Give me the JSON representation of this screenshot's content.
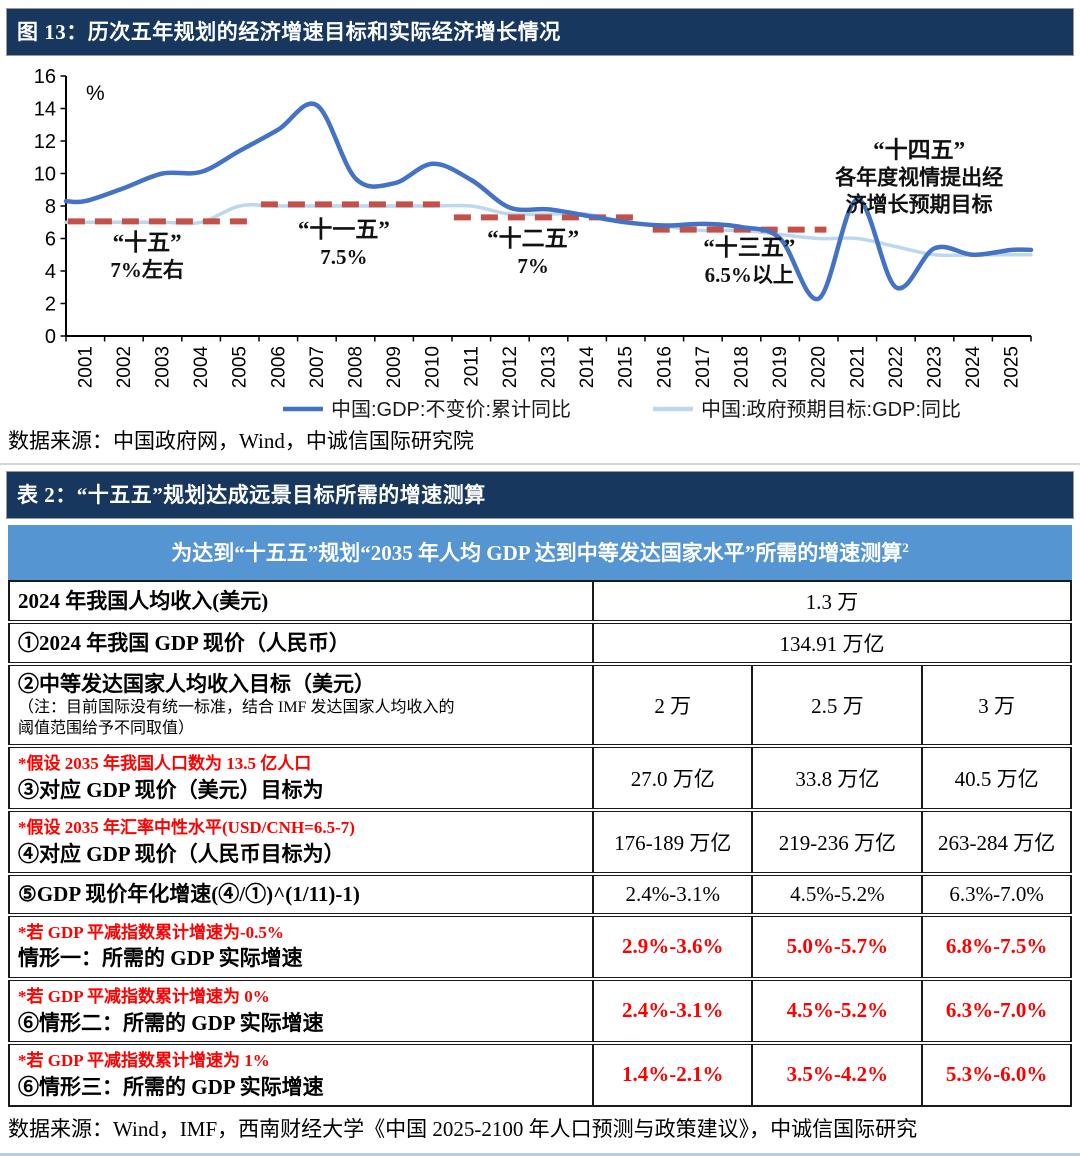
{
  "figure": {
    "title": "图 13：历次五年规划的经济增速目标和实际经济增长情况",
    "source": "数据来源：中国政府网，Wind，中诚信国际研究院"
  },
  "chart_data": {
    "type": "line",
    "title": "历次五年规划的经济增速目标和实际经济增长情况",
    "unit_label": "%",
    "ylim": [
      0,
      16
    ],
    "ytick_step": 2,
    "grid": false,
    "legend_position": "bottom",
    "x": [
      2001,
      2002,
      2003,
      2004,
      2005,
      2006,
      2007,
      2008,
      2009,
      2010,
      2011,
      2012,
      2013,
      2014,
      2015,
      2016,
      2017,
      2018,
      2019,
      2020,
      2021,
      2022,
      2023,
      2024,
      2025
    ],
    "series": [
      {
        "name": "中国:GDP:不变价:累计同比",
        "color": "#4472C4",
        "stroke_width": 4.5,
        "values": [
          8.3,
          9.1,
          10.0,
          10.1,
          11.4,
          12.7,
          14.2,
          9.7,
          9.4,
          10.6,
          9.6,
          7.9,
          7.8,
          7.4,
          7.0,
          6.8,
          6.9,
          6.7,
          6.0,
          2.3,
          8.4,
          3.0,
          5.4,
          5.0,
          5.3
        ]
      },
      {
        "name": "中国:政府预期目标:GDP:同比",
        "color": "#BDD7EE",
        "stroke_width": 3.5,
        "values": [
          7.0,
          7.0,
          7.0,
          7.0,
          8.0,
          8.0,
          8.0,
          8.0,
          8.0,
          8.0,
          8.0,
          7.5,
          7.5,
          7.5,
          7.0,
          6.75,
          6.5,
          6.5,
          6.25,
          6.0,
          6.0,
          5.5,
          5.0,
          5.0,
          5.0
        ]
      }
    ],
    "plan_target_dash": {
      "color": "#C4504A",
      "segments": [
        {
          "plan": "十五",
          "from": 2000.55,
          "to": 2005.3,
          "level": 7.05
        },
        {
          "plan": "十一五",
          "from": 2005.55,
          "to": 2010.35,
          "level": 8.1
        },
        {
          "plan": "十二五",
          "from": 2010.55,
          "to": 2015.4,
          "level": 7.3
        },
        {
          "plan": "十三五",
          "from": 2015.7,
          "to": 2020.2,
          "level": 6.55
        }
      ]
    },
    "annotations": [
      {
        "lines": [
          "“十五”",
          "7%左右"
        ],
        "x": 2002.6,
        "y": 5.3
      },
      {
        "lines": [
          "“十一五”",
          "7.5%"
        ],
        "x": 2007.7,
        "y": 6.1
      },
      {
        "lines": [
          "“十二五”",
          "7%"
        ],
        "x": 2012.6,
        "y": 5.55
      },
      {
        "lines": [
          "“十三五”",
          "6.5%以上"
        ],
        "x": 2018.2,
        "y": 5.0
      },
      {
        "lines": [
          "“十四五”",
          "各年度视情提出经",
          "济增长预期目标"
        ],
        "x": 2022.6,
        "y": 11.0
      }
    ]
  },
  "table": {
    "title": "表 2：“十五五”规划达成远景目标所需的增速测算",
    "banner": {
      "text": "为达到“十五五”规划“2035 年人均 GDP 达到中等发达国家水平”所需的增速测算",
      "superscript": "2"
    },
    "rows": [
      {
        "label_lines": [
          {
            "text": "2024 年我国人均收入(美元)",
            "style": "black"
          }
        ],
        "cells": [
          {
            "text": "1.3 万",
            "span": 3
          }
        ]
      },
      {
        "label_lines": [
          {
            "text": "①2024 年我国 GDP 现价（人民币）",
            "style": "black"
          }
        ],
        "cells": [
          {
            "text": "134.91 万亿",
            "span": 3
          }
        ]
      },
      {
        "label_lines": [
          {
            "text": "②中等发达国家人均收入目标（美元）",
            "style": "black"
          },
          {
            "text": "（注：目前国际没有统一标准，结合 IMF 发达国家人均收入的",
            "style": "note"
          },
          {
            "text": "阈值范围给予不同取值）",
            "style": "note"
          }
        ],
        "cells": [
          {
            "text": "2 万"
          },
          {
            "text": "2.5 万"
          },
          {
            "text": "3 万"
          }
        ]
      },
      {
        "label_lines": [
          {
            "text": "*假设 2035 年我国人口数为 13.5 亿人口",
            "style": "red"
          },
          {
            "text": "③对应 GDP 现价（美元）目标为",
            "style": "black"
          }
        ],
        "cells": [
          {
            "text": "27.0 万亿"
          },
          {
            "text": "33.8 万亿"
          },
          {
            "text": "40.5 万亿"
          }
        ]
      },
      {
        "label_lines": [
          {
            "text": "*假设 2035 年汇率中性水平(USD/CNH=6.5-7)",
            "style": "red"
          },
          {
            "text": "④对应 GDP 现价（人民币目标为）",
            "style": "black"
          }
        ],
        "cells": [
          {
            "text": "176-189 万亿"
          },
          {
            "text": "219-236 万亿"
          },
          {
            "text": "263-284 万亿"
          }
        ]
      },
      {
        "label_lines": [
          {
            "text": "⑤GDP 现价年化增速(④/①)^(1/11)-1)",
            "style": "black"
          }
        ],
        "cells": [
          {
            "text": "2.4%-3.1%"
          },
          {
            "text": "4.5%-5.2%"
          },
          {
            "text": "6.3%-7.0%"
          }
        ]
      },
      {
        "label_lines": [
          {
            "text": "*若 GDP 平减指数累计增速为-0.5%",
            "style": "red"
          },
          {
            "text": "情形一：所需的 GDP 实际增速",
            "style": "black"
          }
        ],
        "cells": [
          {
            "text": "2.9%-3.6%",
            "red": true
          },
          {
            "text": "5.0%-5.7%",
            "red": true
          },
          {
            "text": "6.8%-7.5%",
            "red": true
          }
        ]
      },
      {
        "label_lines": [
          {
            "text": "*若 GDP 平减指数累计增速为 0%",
            "style": "red"
          },
          {
            "text": "⑥情形二：所需的 GDP 实际增速",
            "style": "black"
          }
        ],
        "cells": [
          {
            "text": "2.4%-3.1%",
            "red": true
          },
          {
            "text": "4.5%-5.2%",
            "red": true
          },
          {
            "text": "6.3%-7.0%",
            "red": true
          }
        ]
      },
      {
        "label_lines": [
          {
            "text": "*若 GDP 平减指数累计增速为 1%",
            "style": "red"
          },
          {
            "text": "⑥情形三：所需的 GDP 实际增速",
            "style": "black"
          }
        ],
        "cells": [
          {
            "text": "1.4%-2.1%",
            "red": true
          },
          {
            "text": "3.5%-4.2%",
            "red": true
          },
          {
            "text": "5.3%-6.0%",
            "red": true
          }
        ]
      }
    ],
    "source": "数据来源：Wind，IMF，西南财经大学《中国 2025-2100 年人口预测与政策建议》，中诚信国际研究"
  }
}
